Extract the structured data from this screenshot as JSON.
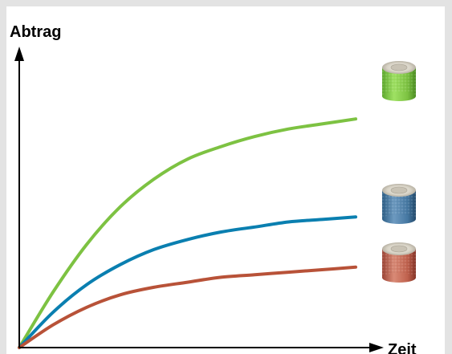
{
  "chart_data": {
    "type": "line",
    "title": "",
    "xlabel": "Zeit",
    "ylabel": "Abtrag",
    "grid": false,
    "legend": "none",
    "xlim": [
      0,
      1
    ],
    "ylim": [
      0,
      1
    ],
    "series": [
      {
        "color": "#7dc242",
        "icon": "green-sanding-sleeve",
        "x": [
          0,
          0.1,
          0.2,
          0.3,
          0.4,
          0.5,
          0.6,
          0.7,
          0.8,
          0.9,
          1.0
        ],
        "y": [
          0,
          0.22,
          0.41,
          0.56,
          0.67,
          0.75,
          0.8,
          0.84,
          0.87,
          0.89,
          0.91
        ]
      },
      {
        "color": "#0a7fb0",
        "icon": "blue-sanding-sleeve",
        "x": [
          0,
          0.1,
          0.2,
          0.3,
          0.4,
          0.5,
          0.6,
          0.7,
          0.8,
          0.9,
          1.0
        ],
        "y": [
          0,
          0.14,
          0.25,
          0.33,
          0.39,
          0.43,
          0.46,
          0.48,
          0.5,
          0.51,
          0.52
        ]
      },
      {
        "color": "#b85238",
        "icon": "red-sanding-sleeve",
        "x": [
          0,
          0.1,
          0.2,
          0.3,
          0.4,
          0.5,
          0.6,
          0.7,
          0.8,
          0.9,
          1.0
        ],
        "y": [
          0,
          0.09,
          0.16,
          0.21,
          0.24,
          0.26,
          0.28,
          0.29,
          0.3,
          0.31,
          0.32
        ]
      }
    ]
  }
}
